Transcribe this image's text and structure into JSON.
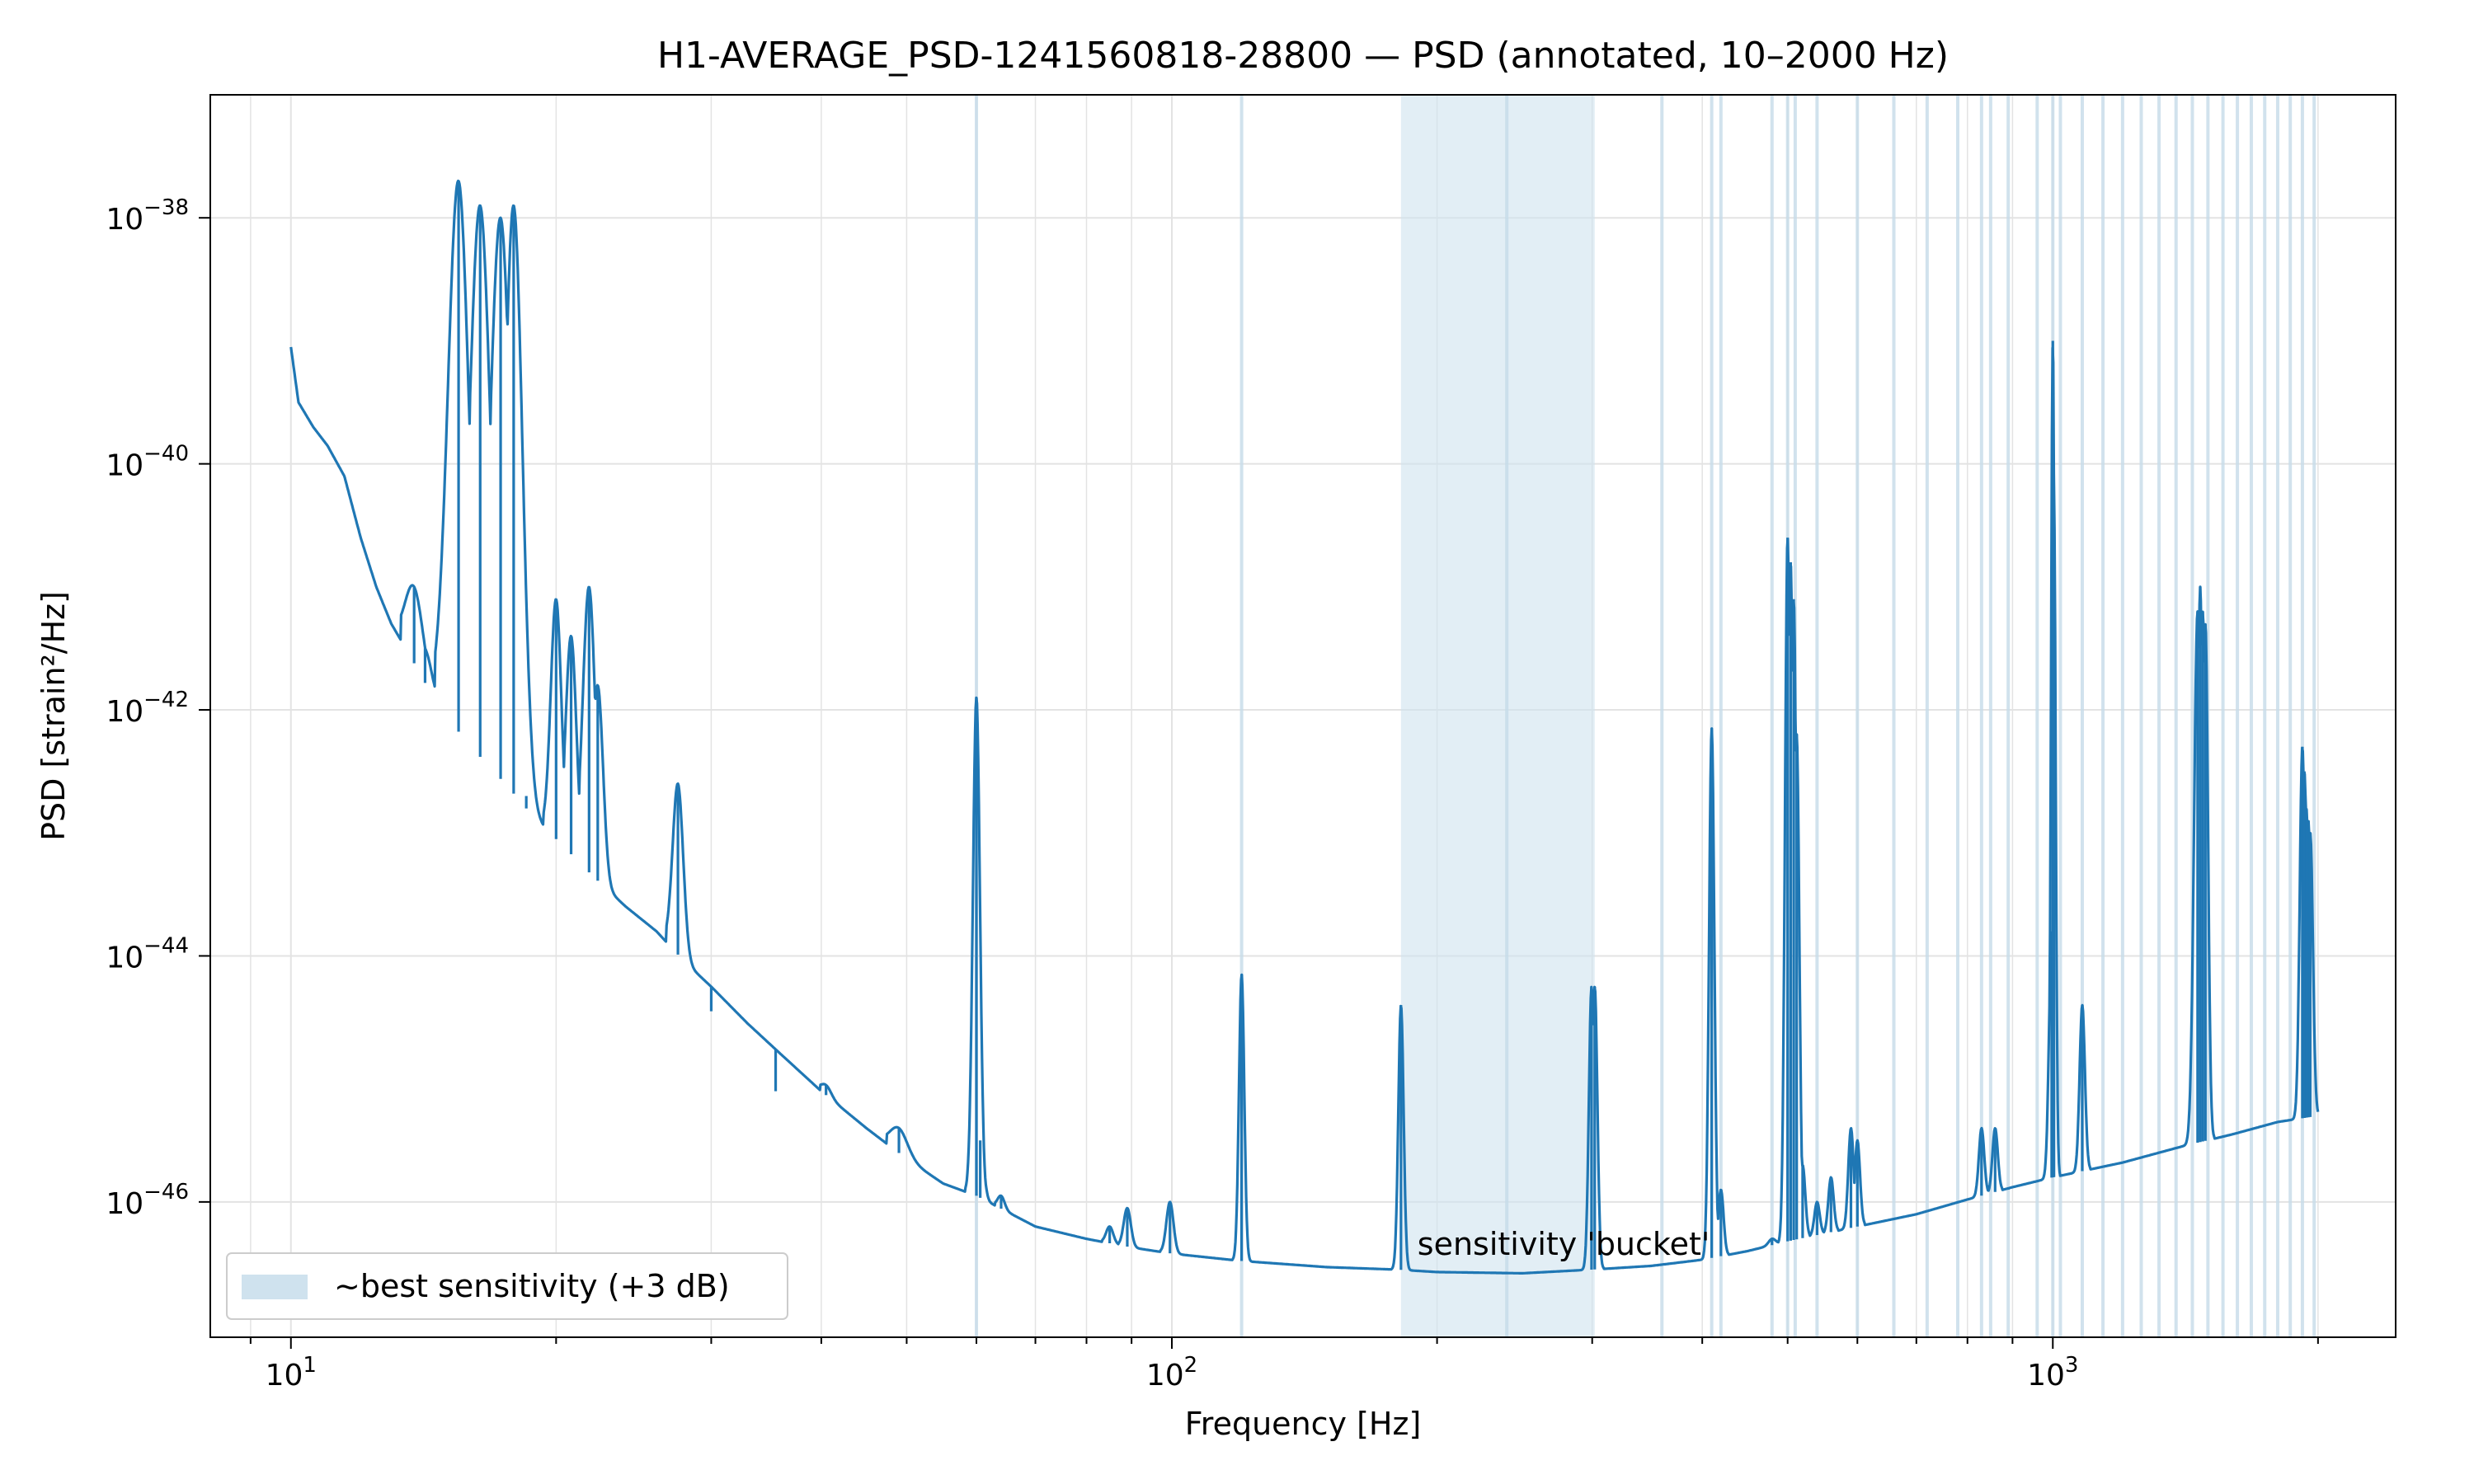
{
  "chart_data": {
    "type": "line",
    "title": "H1-AVERAGE_PSD-1241560818-28800 — PSD (annotated, 10–2000 Hz)",
    "xlabel": "Frequency [Hz]",
    "ylabel": "PSD [strain²/Hz]",
    "xscale": "log",
    "yscale": "log",
    "xlim": [
      8.1,
      2450
    ],
    "ylim_exp": [
      -47.1,
      -37.0
    ],
    "xticks": [
      {
        "value": 10,
        "base": "10",
        "exp": "1"
      },
      {
        "value": 100,
        "base": "10",
        "exp": "2"
      },
      {
        "value": 1000,
        "base": "10",
        "exp": "3"
      }
    ],
    "yticks": [
      {
        "exp_value": -38,
        "base": "10",
        "exp": "−38"
      },
      {
        "exp_value": -40,
        "base": "10",
        "exp": "−40"
      },
      {
        "exp_value": -42,
        "base": "10",
        "exp": "−42"
      },
      {
        "exp_value": -44,
        "base": "10",
        "exp": "−44"
      },
      {
        "exp_value": -46,
        "base": "10",
        "exp": "−46"
      }
    ],
    "grid": true,
    "legend": {
      "placement": "lower-left",
      "entries": [
        {
          "label": "~best sensitivity (+3 dB)",
          "color": "#cfe2ee"
        }
      ]
    },
    "bucket_band": {
      "x_min": 182,
      "x_max": 302
    },
    "annotation": {
      "text": "sensitivity 'bucket'",
      "x": 190,
      "y_exp": -46.35
    },
    "line_marker_freqs": [
      60,
      120,
      240,
      360,
      410,
      420,
      480,
      500,
      510,
      540,
      600,
      660,
      720,
      780,
      830,
      850,
      890,
      960,
      1000,
      1020,
      1080,
      1140,
      1200,
      1260,
      1320,
      1380,
      1440,
      1500,
      1560,
      1620,
      1680,
      1740,
      1800,
      1860,
      1920,
      1980
    ],
    "series": [
      {
        "color": "#1f77b4",
        "baseline": [
          [
            10,
            -39.05
          ],
          [
            10.2,
            -39.5
          ],
          [
            10.6,
            -39.7
          ],
          [
            11.0,
            -39.85
          ],
          [
            11.5,
            -40.1
          ],
          [
            12.0,
            -40.6
          ],
          [
            12.5,
            -41.0
          ],
          [
            13.0,
            -41.3
          ],
          [
            13.5,
            -41.5
          ],
          [
            14.0,
            -41.7
          ],
          [
            14.5,
            -41.9
          ],
          [
            15.0,
            -42.05
          ],
          [
            16.0,
            -42.3
          ],
          [
            17.0,
            -42.5
          ],
          [
            18.0,
            -42.7
          ],
          [
            19.0,
            -42.9
          ],
          [
            20.0,
            -43.05
          ],
          [
            22.0,
            -43.35
          ],
          [
            24.0,
            -43.6
          ],
          [
            26.0,
            -43.8
          ],
          [
            28.0,
            -44.05
          ],
          [
            30.0,
            -44.25
          ],
          [
            33.0,
            -44.55
          ],
          [
            36.0,
            -44.8
          ],
          [
            40.0,
            -45.1
          ],
          [
            45.0,
            -45.4
          ],
          [
            50.0,
            -45.65
          ],
          [
            55.0,
            -45.85
          ],
          [
            60.0,
            -45.95
          ],
          [
            70.0,
            -46.2
          ],
          [
            80.0,
            -46.3
          ],
          [
            90.0,
            -46.37
          ],
          [
            100.0,
            -46.42
          ],
          [
            120.0,
            -46.48
          ],
          [
            150.0,
            -46.53
          ],
          [
            180.0,
            -46.55
          ],
          [
            200.0,
            -46.57
          ],
          [
            250.0,
            -46.58
          ],
          [
            300.0,
            -46.55
          ],
          [
            350.0,
            -46.52
          ],
          [
            400.0,
            -46.47
          ],
          [
            450.0,
            -46.4
          ],
          [
            500.0,
            -46.32
          ],
          [
            600.0,
            -46.2
          ],
          [
            700.0,
            -46.1
          ],
          [
            800.0,
            -45.98
          ],
          [
            900.0,
            -45.88
          ],
          [
            1000.0,
            -45.8
          ],
          [
            1200.0,
            -45.68
          ],
          [
            1400.0,
            -45.55
          ],
          [
            1600.0,
            -45.45
          ],
          [
            1800.0,
            -45.35
          ],
          [
            2000.0,
            -45.3
          ]
        ],
        "peaks": [
          [
            13.8,
            -41.0,
            0.01
          ],
          [
            14.2,
            -41.5,
            0.008
          ],
          [
            15.5,
            -37.7,
            0.012
          ],
          [
            16.4,
            -37.9,
            0.012
          ],
          [
            17.3,
            -38.0,
            0.012
          ],
          [
            17.9,
            -37.9,
            0.01
          ],
          [
            18.5,
            -42.7,
            0.005
          ],
          [
            20.0,
            -41.1,
            0.006
          ],
          [
            20.8,
            -41.4,
            0.006
          ],
          [
            21.8,
            -41.0,
            0.007
          ],
          [
            22.3,
            -41.8,
            0.006
          ],
          [
            27.5,
            -42.6,
            0.006
          ],
          [
            30.0,
            -44.45,
            0.006
          ],
          [
            35.5,
            -45.1,
            0.006
          ],
          [
            40.5,
            -45.05,
            0.006
          ],
          [
            49.0,
            -45.4,
            0.01
          ],
          [
            60.0,
            -41.9,
            0.004
          ],
          [
            60.6,
            -45.5,
            0.004
          ],
          [
            64.0,
            -45.95,
            0.004
          ],
          [
            85.0,
            -46.2,
            0.004
          ],
          [
            89.0,
            -46.05,
            0.004
          ],
          [
            99.5,
            -46.0,
            0.004
          ],
          [
            120.0,
            -44.15,
            0.003
          ],
          [
            182.0,
            -44.4,
            0.003
          ],
          [
            299.5,
            -44.25,
            0.003
          ],
          [
            302.0,
            -44.25,
            0.003
          ],
          [
            410.0,
            -42.15,
            0.003
          ],
          [
            420.0,
            -45.9,
            0.003
          ],
          [
            480.0,
            -46.3,
            0.004
          ],
          [
            500.0,
            -40.6,
            0.003
          ],
          [
            504.0,
            -40.8,
            0.003
          ],
          [
            508.0,
            -41.1,
            0.003
          ],
          [
            512.0,
            -42.2,
            0.003
          ],
          [
            520.0,
            -45.7,
            0.003
          ],
          [
            540.0,
            -46.0,
            0.003
          ],
          [
            560.0,
            -45.8,
            0.003
          ],
          [
            590.0,
            -45.4,
            0.003
          ],
          [
            600.0,
            -45.5,
            0.003
          ],
          [
            830.0,
            -45.4,
            0.003
          ],
          [
            860.0,
            -45.4,
            0.003
          ],
          [
            890.0,
            -45.9,
            0.003
          ],
          [
            997.0,
            -43.8,
            0.003
          ],
          [
            1000.0,
            -39.0,
            0.002
          ],
          [
            1003.0,
            -40.3,
            0.002
          ],
          [
            1080.0,
            -44.4,
            0.003
          ],
          [
            1460.0,
            -41.2,
            0.004
          ],
          [
            1470.0,
            -41.0,
            0.003
          ],
          [
            1480.0,
            -41.2,
            0.003
          ],
          [
            1490.0,
            -41.3,
            0.003
          ],
          [
            1920.0,
            -42.3,
            0.003
          ],
          [
            1930.0,
            -42.5,
            0.003
          ],
          [
            1940.0,
            -42.8,
            0.003
          ],
          [
            1950.0,
            -42.9,
            0.003
          ],
          [
            1960.0,
            -43.0,
            0.003
          ]
        ]
      }
    ]
  }
}
